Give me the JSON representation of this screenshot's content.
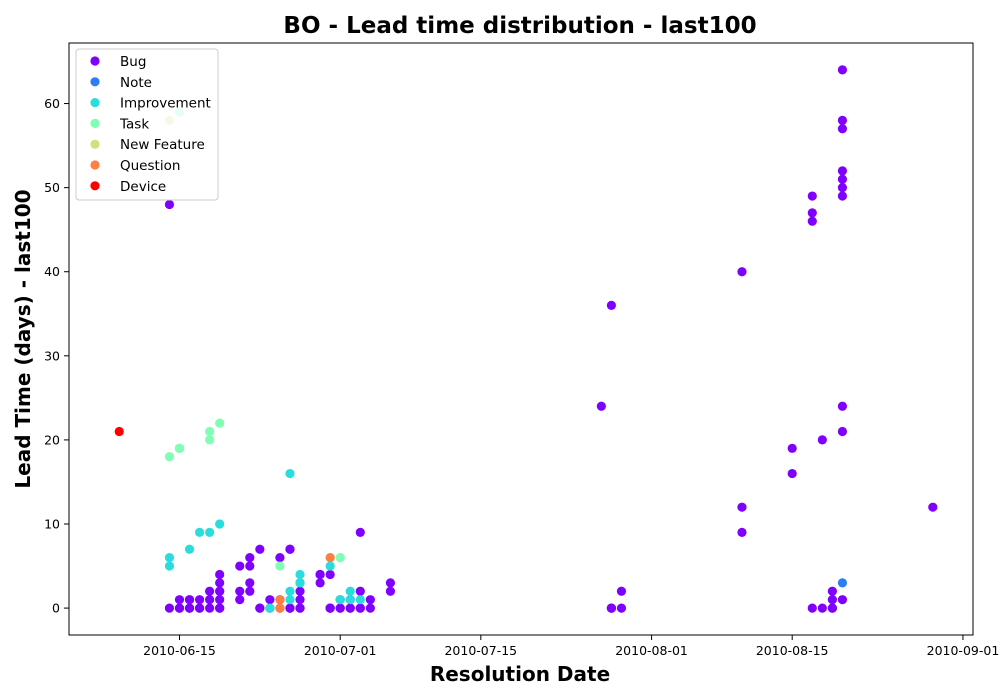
{
  "chart_data": {
    "type": "scatter",
    "title": "BO - Lead time distribution - last100",
    "xlabel": "Resolution Date",
    "ylabel": "Lead Time (days) - last100",
    "xlim": [
      "2010-06-04",
      "2010-09-02"
    ],
    "ylim": [
      -3.2,
      67.2
    ],
    "x_ticks": [
      "2010-06-15",
      "2010-07-01",
      "2010-07-15",
      "2010-08-01",
      "2010-08-15",
      "2010-09-01"
    ],
    "y_ticks": [
      0,
      10,
      20,
      30,
      40,
      50,
      60
    ],
    "grid": false,
    "legend_position": "upper-left",
    "series": [
      {
        "name": "Bug",
        "color": "#8000ff",
        "points": [
          {
            "x": "2010-06-14",
            "y": 48
          },
          {
            "x": "2010-06-14",
            "y": 0
          },
          {
            "x": "2010-06-15",
            "y": 0
          },
          {
            "x": "2010-06-15",
            "y": 0
          },
          {
            "x": "2010-06-15",
            "y": 1
          },
          {
            "x": "2010-06-16",
            "y": 0
          },
          {
            "x": "2010-06-16",
            "y": 1
          },
          {
            "x": "2010-06-16",
            "y": 0
          },
          {
            "x": "2010-06-16",
            "y": 1
          },
          {
            "x": "2010-06-17",
            "y": 0
          },
          {
            "x": "2010-06-17",
            "y": 1
          },
          {
            "x": "2010-06-17",
            "y": 0
          },
          {
            "x": "2010-06-18",
            "y": 2
          },
          {
            "x": "2010-06-18",
            "y": 0
          },
          {
            "x": "2010-06-18",
            "y": 1
          },
          {
            "x": "2010-06-19",
            "y": 2
          },
          {
            "x": "2010-06-19",
            "y": 0
          },
          {
            "x": "2010-06-19",
            "y": 0
          },
          {
            "x": "2010-06-19",
            "y": 2
          },
          {
            "x": "2010-06-19",
            "y": 3
          },
          {
            "x": "2010-06-19",
            "y": 4
          },
          {
            "x": "2010-06-19",
            "y": 1
          },
          {
            "x": "2010-06-21",
            "y": 5
          },
          {
            "x": "2010-06-21",
            "y": 2
          },
          {
            "x": "2010-06-21",
            "y": 1
          },
          {
            "x": "2010-06-22",
            "y": 6
          },
          {
            "x": "2010-06-22",
            "y": 5
          },
          {
            "x": "2010-06-22",
            "y": 3
          },
          {
            "x": "2010-06-22",
            "y": 2
          },
          {
            "x": "2010-06-23",
            "y": 7
          },
          {
            "x": "2010-06-23",
            "y": 0
          },
          {
            "x": "2010-06-23",
            "y": 0
          },
          {
            "x": "2010-06-24",
            "y": 1
          },
          {
            "x": "2010-06-24",
            "y": 0
          },
          {
            "x": "2010-06-25",
            "y": 6
          },
          {
            "x": "2010-06-25",
            "y": 1
          },
          {
            "x": "2010-06-25",
            "y": 0
          },
          {
            "x": "2010-06-26",
            "y": 7
          },
          {
            "x": "2010-06-26",
            "y": 7
          },
          {
            "x": "2010-06-26",
            "y": 0
          },
          {
            "x": "2010-06-26",
            "y": 0
          },
          {
            "x": "2010-06-27",
            "y": 3
          },
          {
            "x": "2010-06-27",
            "y": 2
          },
          {
            "x": "2010-06-27",
            "y": 1
          },
          {
            "x": "2010-06-27",
            "y": 0
          },
          {
            "x": "2010-06-27",
            "y": 0
          },
          {
            "x": "2010-06-29",
            "y": 3
          },
          {
            "x": "2010-06-29",
            "y": 4
          },
          {
            "x": "2010-06-29",
            "y": 4
          },
          {
            "x": "2010-06-30",
            "y": 4
          },
          {
            "x": "2010-06-30",
            "y": 0
          },
          {
            "x": "2010-06-30",
            "y": 0
          },
          {
            "x": "2010-06-30",
            "y": 0
          },
          {
            "x": "2010-07-01",
            "y": 0
          },
          {
            "x": "2010-07-01",
            "y": 0
          },
          {
            "x": "2010-07-01",
            "y": 1
          },
          {
            "x": "2010-07-02",
            "y": 0
          },
          {
            "x": "2010-07-02",
            "y": 0
          },
          {
            "x": "2010-07-02",
            "y": 1
          },
          {
            "x": "2010-07-03",
            "y": 9
          },
          {
            "x": "2010-07-03",
            "y": 2
          },
          {
            "x": "2010-07-03",
            "y": 0
          },
          {
            "x": "2010-07-03",
            "y": 0
          },
          {
            "x": "2010-07-04",
            "y": 1
          },
          {
            "x": "2010-07-04",
            "y": 0
          },
          {
            "x": "2010-07-06",
            "y": 3
          },
          {
            "x": "2010-07-06",
            "y": 2
          },
          {
            "x": "2010-07-27",
            "y": 24
          },
          {
            "x": "2010-07-28",
            "y": 0
          },
          {
            "x": "2010-07-28",
            "y": 0
          },
          {
            "x": "2010-07-28",
            "y": 0
          },
          {
            "x": "2010-07-28",
            "y": 36
          },
          {
            "x": "2010-07-29",
            "y": 0
          },
          {
            "x": "2010-07-29",
            "y": 2
          },
          {
            "x": "2010-08-10",
            "y": 12
          },
          {
            "x": "2010-08-10",
            "y": 9
          },
          {
            "x": "2010-08-10",
            "y": 40
          },
          {
            "x": "2010-08-15",
            "y": 19
          },
          {
            "x": "2010-08-15",
            "y": 16
          },
          {
            "x": "2010-08-17",
            "y": 49
          },
          {
            "x": "2010-08-17",
            "y": 47
          },
          {
            "x": "2010-08-17",
            "y": 46
          },
          {
            "x": "2010-08-17",
            "y": 0
          },
          {
            "x": "2010-08-18",
            "y": 20
          },
          {
            "x": "2010-08-18",
            "y": 0
          },
          {
            "x": "2010-08-19",
            "y": 0
          },
          {
            "x": "2010-08-19",
            "y": 2
          },
          {
            "x": "2010-08-19",
            "y": 1
          },
          {
            "x": "2010-08-19",
            "y": 0
          },
          {
            "x": "2010-08-20",
            "y": 64
          },
          {
            "x": "2010-08-20",
            "y": 58
          },
          {
            "x": "2010-08-20",
            "y": 57
          },
          {
            "x": "2010-08-20",
            "y": 52
          },
          {
            "x": "2010-08-20",
            "y": 51
          },
          {
            "x": "2010-08-20",
            "y": 50
          },
          {
            "x": "2010-08-20",
            "y": 49
          },
          {
            "x": "2010-08-20",
            "y": 24
          },
          {
            "x": "2010-08-20",
            "y": 21
          },
          {
            "x": "2010-08-20",
            "y": 1
          },
          {
            "x": "2010-08-29",
            "y": 12
          }
        ]
      },
      {
        "name": "Note",
        "color": "#2c7ef7",
        "points": [
          {
            "x": "2010-08-20",
            "y": 3
          }
        ]
      },
      {
        "name": "Improvement",
        "color": "#2adddd",
        "points": [
          {
            "x": "2010-06-14",
            "y": 5
          },
          {
            "x": "2010-06-14",
            "y": 6
          },
          {
            "x": "2010-06-15",
            "y": 19
          },
          {
            "x": "2010-06-16",
            "y": 7
          },
          {
            "x": "2010-06-17",
            "y": 9
          },
          {
            "x": "2010-06-18",
            "y": 9
          },
          {
            "x": "2010-06-19",
            "y": 10
          },
          {
            "x": "2010-06-24",
            "y": 0
          },
          {
            "x": "2010-06-25",
            "y": 0
          },
          {
            "x": "2010-06-26",
            "y": 16
          },
          {
            "x": "2010-06-26",
            "y": 2
          },
          {
            "x": "2010-06-26",
            "y": 1
          },
          {
            "x": "2010-06-27",
            "y": 4
          },
          {
            "x": "2010-06-27",
            "y": 3
          },
          {
            "x": "2010-06-30",
            "y": 5
          },
          {
            "x": "2010-07-01",
            "y": 1
          },
          {
            "x": "2010-07-02",
            "y": 2
          },
          {
            "x": "2010-07-02",
            "y": 1
          },
          {
            "x": "2010-07-03",
            "y": 1
          }
        ]
      },
      {
        "name": "Task",
        "color": "#80ffb4",
        "points": [
          {
            "x": "2010-06-14",
            "y": 18
          },
          {
            "x": "2010-06-15",
            "y": 19
          },
          {
            "x": "2010-06-15",
            "y": 59
          },
          {
            "x": "2010-06-18",
            "y": 20
          },
          {
            "x": "2010-06-18",
            "y": 21
          },
          {
            "x": "2010-06-19",
            "y": 22
          },
          {
            "x": "2010-06-25",
            "y": 5
          },
          {
            "x": "2010-06-30",
            "y": 6
          },
          {
            "x": "2010-07-01",
            "y": 6
          },
          {
            "x": "2010-07-01",
            "y": 6
          }
        ]
      },
      {
        "name": "New Feature",
        "color": "#d4dd80",
        "points": [
          {
            "x": "2010-06-14",
            "y": 58
          },
          {
            "x": "2010-06-25",
            "y": 0
          }
        ]
      },
      {
        "name": "Question",
        "color": "#ff7e41",
        "points": [
          {
            "x": "2010-06-25",
            "y": 1
          },
          {
            "x": "2010-06-25",
            "y": 0
          },
          {
            "x": "2010-06-30",
            "y": 6
          }
        ]
      },
      {
        "name": "Device",
        "color": "#ff0000",
        "points": [
          {
            "x": "2010-06-09",
            "y": 21
          }
        ]
      }
    ]
  }
}
